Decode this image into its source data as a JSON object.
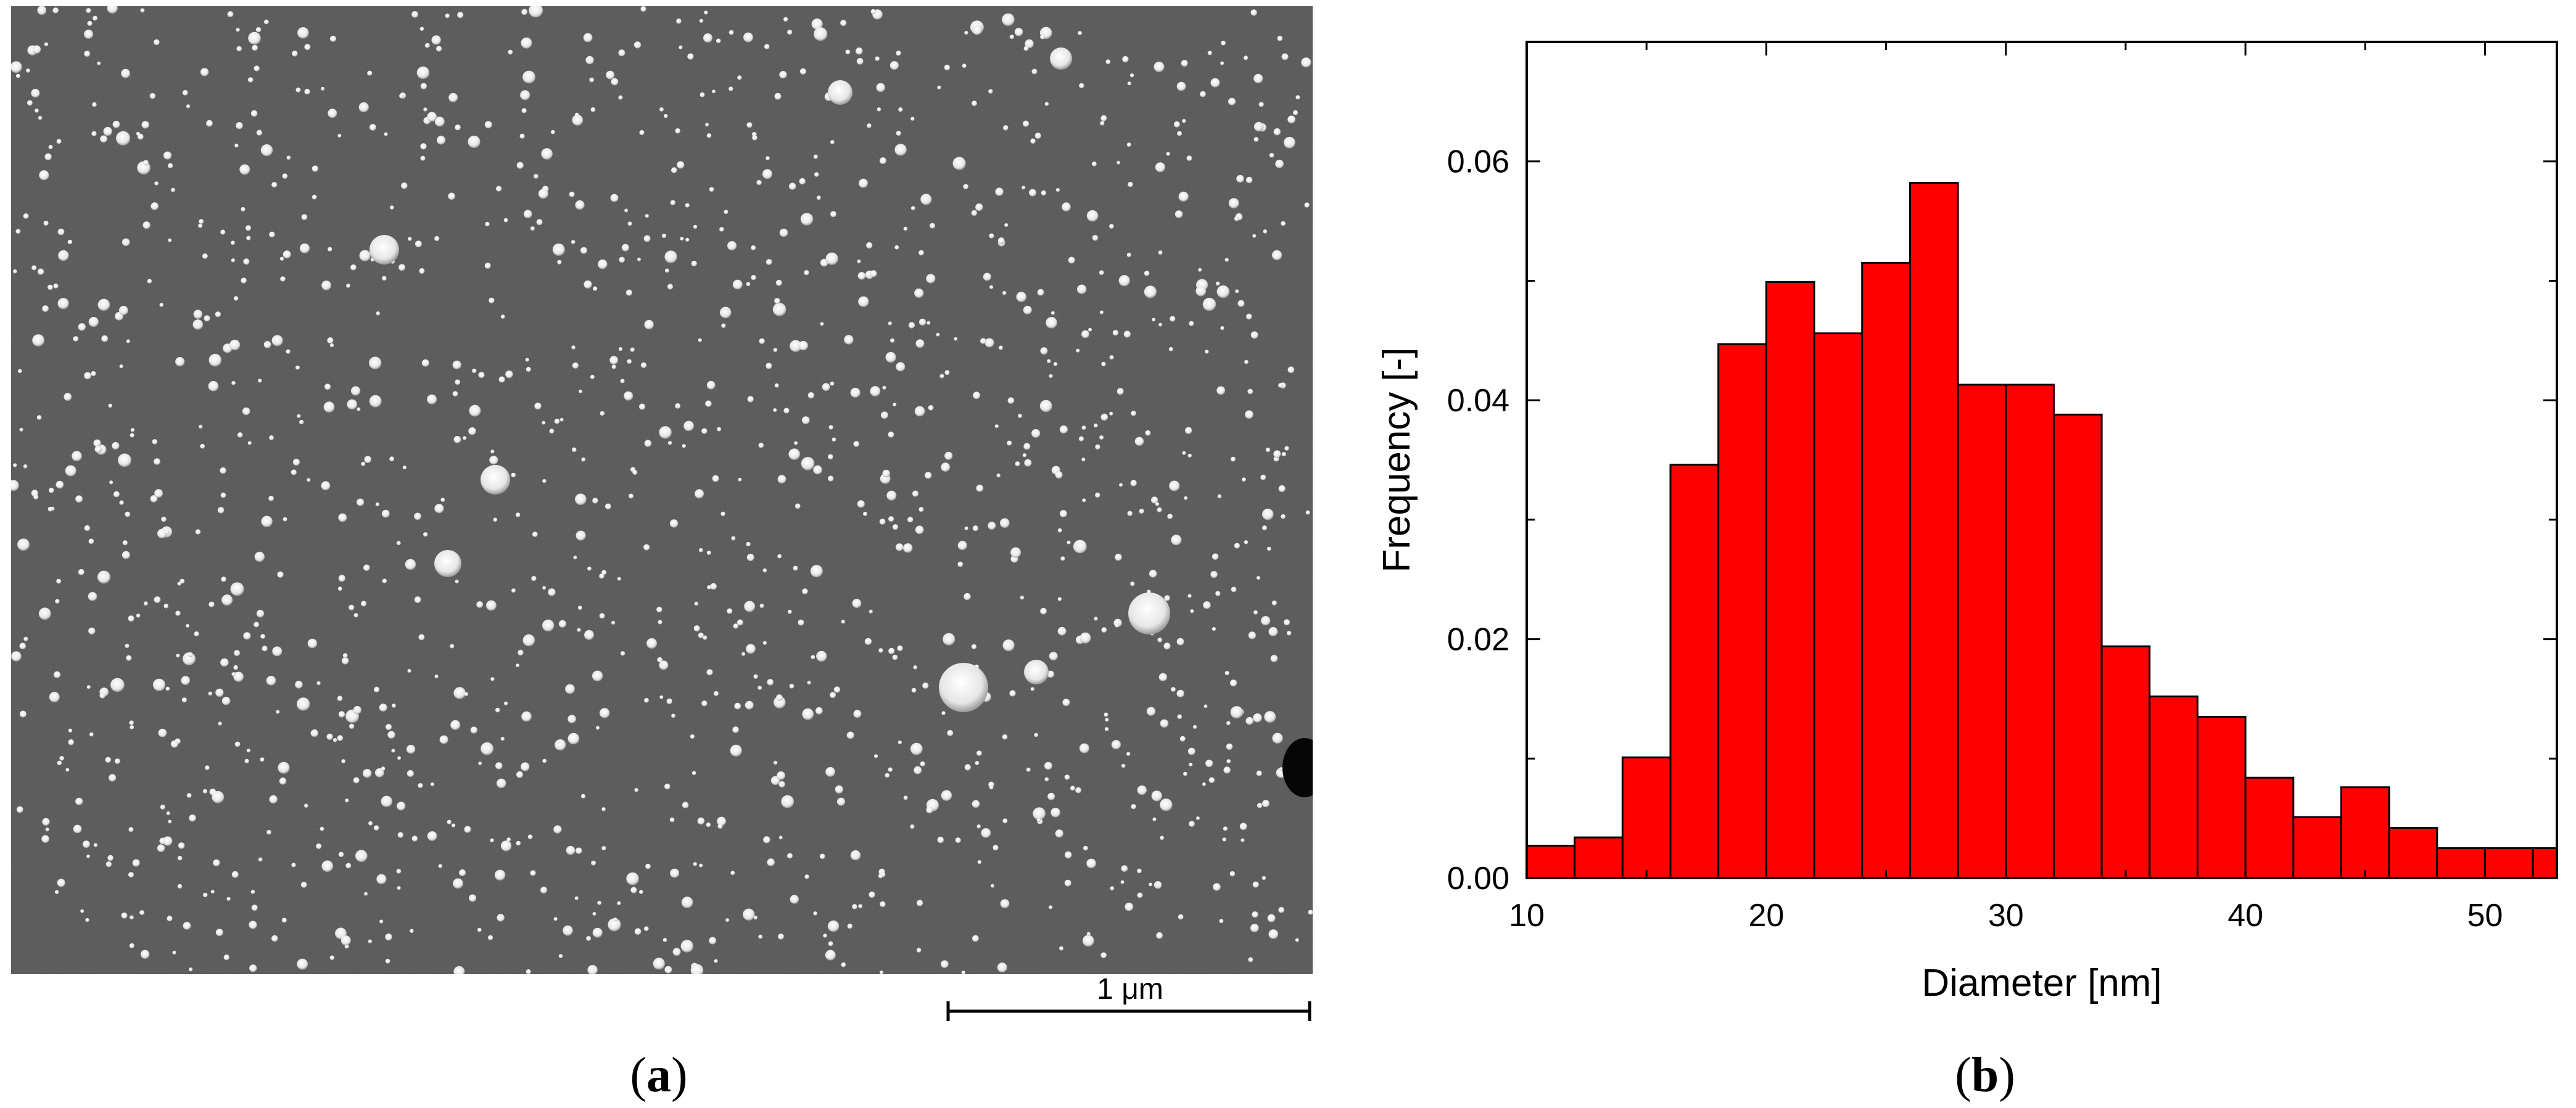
{
  "panel_a": {
    "scale_bar_label": "1 μm",
    "caption_letter": "a"
  },
  "panel_b": {
    "caption_letter": "b"
  },
  "chart_data": {
    "type": "bar",
    "title": "",
    "xlabel": "Diameter [nm]",
    "ylabel": "Frequency [-]",
    "xlim": [
      10,
      53
    ],
    "ylim": [
      0,
      0.07
    ],
    "x_ticks": [
      10,
      20,
      30,
      40,
      50
    ],
    "y_ticks": [
      "0.00",
      "0.02",
      "0.04",
      "0.06"
    ],
    "bin_width": 2,
    "bin_starts": [
      10,
      12,
      14,
      16,
      18,
      20,
      22,
      24,
      26,
      28,
      30,
      32,
      34,
      36,
      38,
      40,
      42,
      44,
      46,
      48,
      50,
      52
    ],
    "values": [
      0.0027,
      0.0034,
      0.0101,
      0.0346,
      0.0447,
      0.0499,
      0.0456,
      0.0515,
      0.0582,
      0.0413,
      0.0413,
      0.0388,
      0.0194,
      0.0152,
      0.0135,
      0.0084,
      0.0051,
      0.0076,
      0.0042,
      0.0025,
      0.0025,
      0.0025
    ],
    "bar_color": "#ff0000",
    "grid": false,
    "legend": "none"
  }
}
